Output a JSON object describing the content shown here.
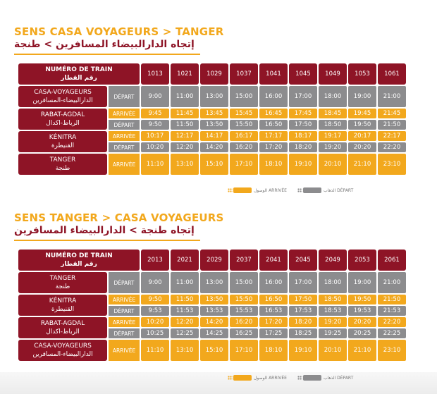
{
  "section1": {
    "title_fr": "SENS CASA VOYAGEURS > TANGER",
    "title_ar": "إتجاه الدارالبيضاء المسافرين > طنجة",
    "header_fr": "NUMÉRO DE TRAIN",
    "header_ar": "رقم القطار",
    "trains": [
      "1013",
      "1021",
      "1029",
      "1037",
      "1041",
      "1045",
      "1049",
      "1053",
      "1061"
    ],
    "stations": [
      {
        "fr": "CASA-VOYAGEURS",
        "ar": "الدارالبيضاء-المسافرين",
        "rows": [
          {
            "type": "dep",
            "label": "DÉPART",
            "times": [
              "9:00",
              "11:00",
              "13:00",
              "15:00",
              "16:00",
              "17:00",
              "18:00",
              "19:00",
              "21:00"
            ]
          }
        ]
      },
      {
        "fr": "RABAT-AGDAL",
        "ar": "الرباط-اكدال",
        "rows": [
          {
            "type": "arr",
            "label": "ARRIVÉE",
            "times": [
              "9:45",
              "11:45",
              "13:45",
              "15:45",
              "16:45",
              "17:45",
              "18:45",
              "19:45",
              "21:45"
            ]
          },
          {
            "type": "dep",
            "label": "DÉPART",
            "times": [
              "9:50",
              "11:50",
              "13:50",
              "15:50",
              "16:50",
              "17:50",
              "18:50",
              "19:50",
              "21:50"
            ]
          }
        ]
      },
      {
        "fr": "KÉNITRA",
        "ar": "القنيطرة",
        "rows": [
          {
            "type": "arr",
            "label": "ARRIVÉE",
            "times": [
              "10:17",
              "12:17",
              "14:17",
              "16:17",
              "17:17",
              "18:17",
              "19:17",
              "20:17",
              "22:17"
            ]
          },
          {
            "type": "dep",
            "label": "DÉPART",
            "times": [
              "10:20",
              "12:20",
              "14:20",
              "16:20",
              "17:20",
              "18:20",
              "19:20",
              "20:20",
              "22:20"
            ]
          }
        ]
      },
      {
        "fr": "TANGER",
        "ar": "طنجة",
        "rows": [
          {
            "type": "arr",
            "label": "ARRIVÉE",
            "times": [
              "11:10",
              "13:10",
              "15:10",
              "17:10",
              "18:10",
              "19:10",
              "20:10",
              "21:10",
              "23:10"
            ]
          }
        ]
      }
    ]
  },
  "section2": {
    "title_fr": "SENS TANGER > CASA VOYAGEURS",
    "title_ar": "إتجاه طنجة > الدارالبيضاء المسافرين",
    "header_fr": "NUMÉRO DE TRAIN",
    "header_ar": "رقم القطار",
    "trains": [
      "2013",
      "2021",
      "2029",
      "2037",
      "2041",
      "2045",
      "2049",
      "2053",
      "2061"
    ],
    "stations": [
      {
        "fr": "TANGER",
        "ar": "طنجة",
        "rows": [
          {
            "type": "dep",
            "label": "DÉPART",
            "times": [
              "9:00",
              "11:00",
              "13:00",
              "15:00",
              "16:00",
              "17:00",
              "18:00",
              "19:00",
              "21:00"
            ]
          }
        ]
      },
      {
        "fr": "KÉNITRA",
        "ar": "القنيطرة",
        "rows": [
          {
            "type": "arr",
            "label": "ARRIVÉE",
            "times": [
              "9:50",
              "11:50",
              "13:50",
              "15:50",
              "16:50",
              "17:50",
              "18:50",
              "19:50",
              "21:50"
            ]
          },
          {
            "type": "dep",
            "label": "DÉPART",
            "times": [
              "9:53",
              "11:53",
              "13:53",
              "15:53",
              "16:53",
              "17:53",
              "18:53",
              "19:53",
              "21:53"
            ]
          }
        ]
      },
      {
        "fr": "RABAT-AGDAL",
        "ar": "الرباط-اكدال",
        "rows": [
          {
            "type": "arr",
            "label": "ARRIVÉE",
            "times": [
              "10:20",
              "12:20",
              "14:20",
              "16:20",
              "17:20",
              "18:20",
              "19:20",
              "20:20",
              "22:20"
            ]
          },
          {
            "type": "dep",
            "label": "DÉPART",
            "times": [
              "10:25",
              "12:25",
              "14:25",
              "16:25",
              "17:25",
              "18:25",
              "19:25",
              "20:25",
              "22:25"
            ]
          }
        ]
      },
      {
        "fr": "CASA-VOYAGEURS",
        "ar": "الدارالبيضاء-المسافرين",
        "rows": [
          {
            "type": "arr",
            "label": "ARRIVÉE",
            "times": [
              "11:10",
              "13:10",
              "15:10",
              "17:10",
              "18:10",
              "19:10",
              "20:10",
              "21:10",
              "23:10"
            ]
          }
        ]
      }
    ]
  },
  "legend": {
    "departure": "الذهاب DÉPART",
    "arrival": "الوصول ARRIVÉE",
    "colors": {
      "departure": "#8C8C8E",
      "arrival": "#F2A81D",
      "station": "#8E1426"
    }
  }
}
